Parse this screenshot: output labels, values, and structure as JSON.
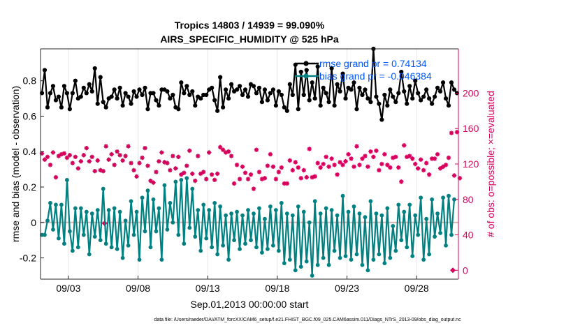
{
  "chart_data": {
    "type": "line",
    "title": "Tropics 14803 / 14939 = 99.090%",
    "subtitle": "AIRS_SPECIFIC_HUMIDITY @ 525 hPa",
    "xlabel": "Sep.01,2013 00:00:00 start",
    "ylabel_left": "rmse and bias (model - observation)",
    "ylabel_right": "# of obs: o=possible; ×=evaluated",
    "footer": "data file: /Users/raeder/DAI/ATM_forcXX/CAM6_setup/f.e21.FHIST_BGC.f09_025.CAM6assim.011/Diags_NTrS_2013-09/obs_diag_output.nc",
    "xlim": [
      1.0,
      31.0
    ],
    "ylim_left": [
      -0.32,
      0.98
    ],
    "ylim_right": [
      -10,
      250
    ],
    "x_ticks": [
      {
        "label": "09/03",
        "value": 3
      },
      {
        "label": "09/08",
        "value": 8
      },
      {
        "label": "09/13",
        "value": 13
      },
      {
        "label": "09/18",
        "value": 18
      },
      {
        "label": "09/23",
        "value": 23
      },
      {
        "label": "09/28",
        "value": 28
      }
    ],
    "y_ticks_left": [
      "-0.2",
      "0",
      "0.2",
      "0.4",
      "0.6",
      "0.8"
    ],
    "y_ticks_right": [
      "0",
      "40",
      "80",
      "120",
      "160",
      "200"
    ],
    "legend": [
      {
        "label": "rmse grand pr = 0.74134",
        "color": "#000000"
      },
      {
        "label": "bias grand pr = -0.046384",
        "color": "#008080"
      }
    ],
    "colors": {
      "rmse": "#000000",
      "bias": "#008080",
      "obs": "#d6005c",
      "zero": "#d9b3b3",
      "legend_text": "#0055ff"
    },
    "rmse": [
      0.73,
      0.86,
      0.65,
      0.73,
      0.77,
      0.69,
      0.71,
      0.65,
      0.77,
      0.73,
      0.64,
      0.73,
      0.8,
      0.7,
      0.71,
      0.76,
      0.73,
      0.78,
      0.74,
      0.87,
      0.67,
      0.82,
      0.68,
      0.65,
      0.7,
      0.71,
      0.75,
      0.7,
      0.76,
      0.66,
      0.73,
      0.71,
      0.67,
      0.74,
      0.71,
      0.75,
      0.72,
      0.76,
      0.64,
      0.73,
      0.73,
      0.69,
      0.66,
      0.75,
      0.75,
      0.74,
      0.7,
      0.72,
      0.65,
      0.64,
      0.79,
      0.73,
      0.77,
      0.72,
      0.74,
      0.66,
      0.71,
      0.7,
      0.72,
      0.72,
      0.75,
      0.76,
      0.69,
      0.63,
      0.82,
      0.65,
      0.75,
      0.7,
      0.78,
      0.74,
      0.75,
      0.77,
      0.72,
      0.75,
      0.71,
      0.78,
      0.77,
      0.73,
      0.76,
      0.68,
      0.75,
      0.69,
      0.73,
      0.75,
      0.66,
      0.74,
      0.72,
      0.65,
      0.63,
      0.78,
      0.72,
      0.89,
      0.64,
      0.85,
      0.72,
      0.86,
      0.69,
      0.79,
      0.7,
      0.88,
      0.66,
      0.76,
      0.73,
      0.68,
      0.87,
      0.66,
      0.78,
      0.74,
      0.84,
      0.7,
      0.76,
      0.75,
      0.79,
      0.64,
      0.76,
      0.72,
      0.75,
      0.7,
      0.68,
      0.98,
      0.71,
      0.67,
      0.58,
      0.72,
      0.66,
      0.75,
      0.71,
      0.68,
      0.73,
      0.85,
      0.74,
      0.67,
      0.77,
      0.7,
      0.8,
      0.73,
      0.69,
      0.71,
      0.75,
      0.7,
      0.67,
      0.71,
      0.76,
      0.74,
      0.79,
      0.7,
      0.66,
      0.79,
      0.75,
      0.73
    ],
    "bias": [
      -0.07,
      -0.07,
      0.01,
      0.11,
      -0.04,
      0.1,
      -0.09,
      0.1,
      -0.12,
      0.24,
      -0.05,
      -0.16,
      0.08,
      -0.14,
      0.08,
      -0.07,
      0.06,
      -0.18,
      0.05,
      -0.08,
      0.07,
      -0.1,
      0.19,
      -0.12,
      0.07,
      -0.14,
      0.08,
      -0.15,
      0.06,
      -0.2,
      0.01,
      -0.13,
      0.12,
      -0.07,
      0.06,
      -0.21,
      0.14,
      -0.05,
      0.18,
      -0.14,
      0.13,
      -0.05,
      0.08,
      -0.21,
      0.21,
      -0.04,
      0.11,
      0.0,
      0.23,
      -0.07,
      0.24,
      -0.12,
      0.25,
      -0.03,
      0.19,
      -0.08,
      0.07,
      -0.16,
      0.1,
      -0.09,
      0.07,
      -0.14,
      0.11,
      -0.18,
      0.09,
      -0.13,
      0.04,
      -0.21,
      0.05,
      -0.1,
      0.06,
      -0.15,
      0.04,
      -0.12,
      0.07,
      -0.1,
      0.05,
      -0.14,
      0.08,
      -0.17,
      0.02,
      -0.15,
      0.09,
      -0.13,
      0.07,
      -0.16,
      0.11,
      -0.23,
      0.05,
      -0.21,
      0.04,
      -0.27,
      0.09,
      -0.25,
      0.06,
      -0.22,
      0.0,
      -0.3,
      0.12,
      -0.24,
      0.05,
      -0.2,
      0.08,
      -0.24,
      0.07,
      -0.16,
      0.04,
      -0.2,
      0.15,
      -0.19,
      0.06,
      -0.21,
      0.09,
      -0.18,
      0.05,
      -0.24,
      0.03,
      -0.27,
      0.12,
      -0.21,
      0.05,
      -0.18,
      0.04,
      -0.23,
      0.08,
      -0.2,
      -0.02,
      -0.16,
      0.1,
      -0.1,
      0.06,
      -0.14,
      0.1,
      -0.19,
      0.04,
      -0.07,
      0.14,
      -0.21,
      0.02,
      -0.18,
      0.13,
      -0.08,
      0.05,
      -0.06,
      0.14,
      -0.13,
      0.15,
      -0.07,
      0.13
    ],
    "obs_count": [
      132,
      125,
      128,
      119,
      133,
      105,
      129,
      131,
      132,
      127,
      130,
      121,
      128,
      115,
      123,
      130,
      138,
      123,
      128,
      112,
      124,
      113,
      112,
      140,
      125,
      131,
      119,
      134,
      130,
      124,
      129,
      140,
      121,
      113,
      106,
      121,
      127,
      138,
      118,
      101,
      99,
      111,
      123,
      133,
      122,
      121,
      113,
      129,
      115,
      128,
      108,
      110,
      118,
      135,
      109,
      101,
      129,
      109,
      111,
      103,
      133,
      108,
      102,
      109,
      139,
      136,
      133,
      134,
      129,
      98,
      119,
      103,
      117,
      110,
      103,
      108,
      92,
      136,
      111,
      103,
      104,
      118,
      131,
      117,
      103,
      111,
      116,
      98,
      98,
      124,
      113,
      122,
      116,
      104,
      113,
      105,
      137,
      105,
      106,
      121,
      116,
      120,
      128,
      117,
      126,
      119,
      108,
      122,
      119,
      123,
      131,
      126,
      117,
      140,
      119,
      126,
      129,
      117,
      134,
      128,
      135,
      113,
      120,
      131,
      119,
      116,
      127,
      128,
      116,
      100,
      141,
      128,
      129,
      126,
      120,
      115,
      125,
      113,
      121,
      108,
      126,
      126,
      131,
      115,
      117,
      119,
      127,
      155,
      107,
      156,
      104
    ],
    "obs_outliers": [
      {
        "x": 5.6,
        "value": 53
      },
      {
        "x": 30.6,
        "value": 0
      }
    ]
  }
}
